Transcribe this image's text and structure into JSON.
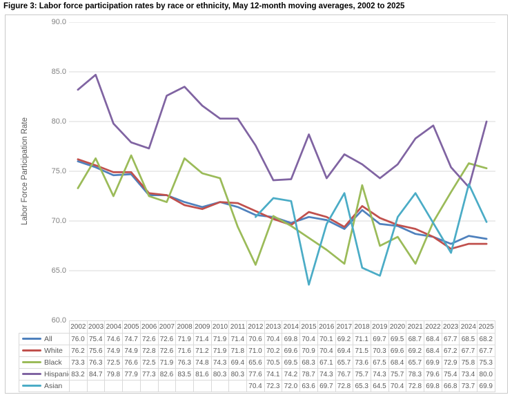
{
  "title": "Figure 3: Labor force participation rates by race or ethnicity, May 12-month moving averages, 2002 to 2025",
  "chart_data": {
    "type": "line",
    "x": [
      2002,
      2003,
      2004,
      2005,
      2006,
      2007,
      2008,
      2009,
      2010,
      2011,
      2012,
      2013,
      2014,
      2015,
      2016,
      2017,
      2018,
      2019,
      2020,
      2021,
      2022,
      2023,
      2024,
      2025
    ],
    "y_axis": {
      "title": "Labor Force Participation Rate",
      "min": 60,
      "max": 90,
      "ticks": [
        90,
        85,
        80,
        75,
        70,
        65,
        60
      ],
      "decimals": 1
    },
    "grid": true,
    "legend_position": "table-left",
    "colors": {
      "gridline": "#d9d9d9",
      "table_border": "#d9d9d9",
      "tick_text": "#808080",
      "table_text": "#595959"
    },
    "series": [
      {
        "name": "All",
        "color": "#4F81BD",
        "values": [
          76.0,
          75.4,
          74.6,
          74.7,
          72.6,
          72.6,
          71.9,
          71.4,
          71.9,
          71.4,
          70.6,
          70.4,
          69.8,
          70.4,
          70.1,
          69.2,
          71.1,
          69.7,
          69.5,
          68.7,
          68.4,
          67.7,
          68.5,
          68.2
        ]
      },
      {
        "name": "White",
        "color": "#C0504D",
        "values": [
          76.2,
          75.6,
          74.9,
          74.9,
          72.8,
          72.6,
          71.6,
          71.2,
          71.9,
          71.8,
          71.0,
          70.2,
          69.6,
          70.9,
          70.4,
          69.4,
          71.5,
          70.3,
          69.6,
          69.2,
          68.4,
          67.2,
          67.7,
          67.7
        ]
      },
      {
        "name": "Black",
        "color": "#9BBB59",
        "values": [
          73.3,
          76.3,
          72.5,
          76.6,
          72.5,
          71.9,
          76.3,
          74.8,
          74.3,
          69.4,
          65.6,
          70.5,
          69.5,
          68.3,
          67.1,
          65.7,
          73.6,
          67.5,
          68.4,
          65.7,
          69.9,
          72.9,
          75.8,
          75.3
        ]
      },
      {
        "name": "Hispanic",
        "color": "#8064A2",
        "values": [
          83.2,
          84.7,
          79.8,
          77.9,
          77.3,
          82.6,
          83.5,
          81.6,
          80.3,
          80.3,
          77.6,
          74.1,
          74.2,
          78.7,
          74.3,
          76.7,
          75.7,
          74.3,
          75.7,
          78.3,
          79.6,
          75.4,
          73.4,
          80.0
        ]
      },
      {
        "name": "Asian",
        "color": "#4BACC6",
        "values": [
          null,
          null,
          null,
          null,
          null,
          null,
          null,
          null,
          null,
          null,
          70.4,
          72.3,
          72.0,
          63.6,
          69.7,
          72.8,
          65.3,
          64.5,
          70.4,
          72.8,
          69.8,
          66.8,
          73.7,
          69.9
        ]
      }
    ]
  }
}
